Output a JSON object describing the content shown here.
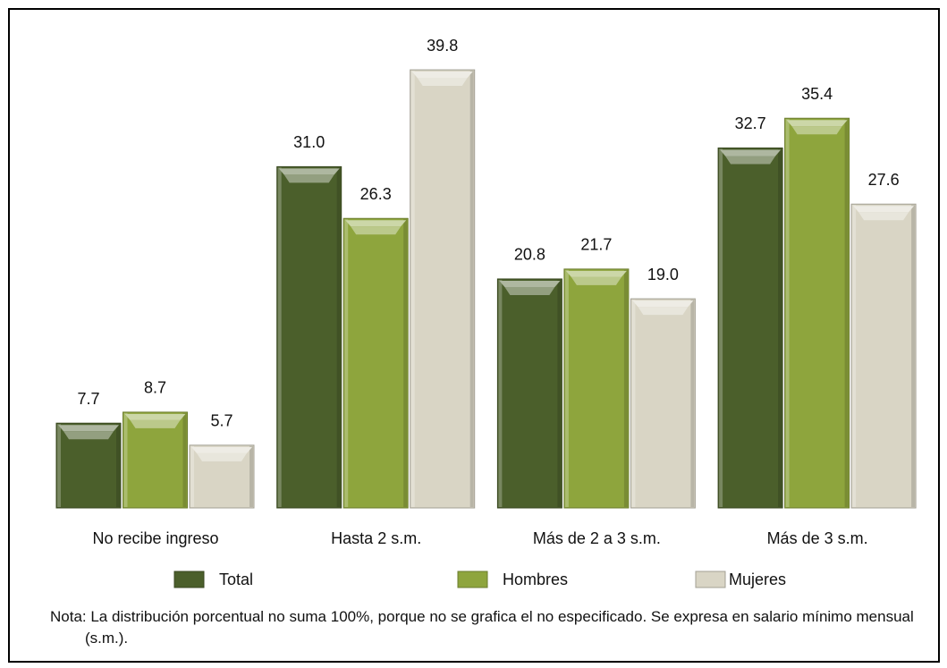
{
  "chart_data": {
    "type": "bar",
    "categories": [
      "No recibe ingreso",
      "Hasta 2 s.m.",
      "Más de 2 a 3 s.m.",
      "Más de 3 s.m."
    ],
    "series": [
      {
        "name": "Total",
        "color": "#4b5f2b",
        "values": [
          7.7,
          31.0,
          20.8,
          32.7
        ],
        "value_labels": [
          "7.7",
          "31.0",
          "20.8",
          "32.7"
        ]
      },
      {
        "name": "Hombres",
        "color": "#8ea53d",
        "values": [
          8.7,
          26.3,
          21.7,
          35.4
        ],
        "value_labels": [
          "8.7",
          "26.3",
          "21.7",
          "35.4"
        ]
      },
      {
        "name": "Mujeres",
        "color": "#d9d5c5",
        "values": [
          5.7,
          39.8,
          19.0,
          27.6
        ],
        "value_labels": [
          "5.7",
          "39.8",
          "19.0",
          "27.6"
        ]
      }
    ],
    "ylim": [
      0,
      40
    ],
    "legend": "bottom",
    "note": "Nota: La distribución porcentual no suma 100%, porque no se grafica el no especificado. Se expresa en salario mínimo mensual (s.m.)."
  }
}
